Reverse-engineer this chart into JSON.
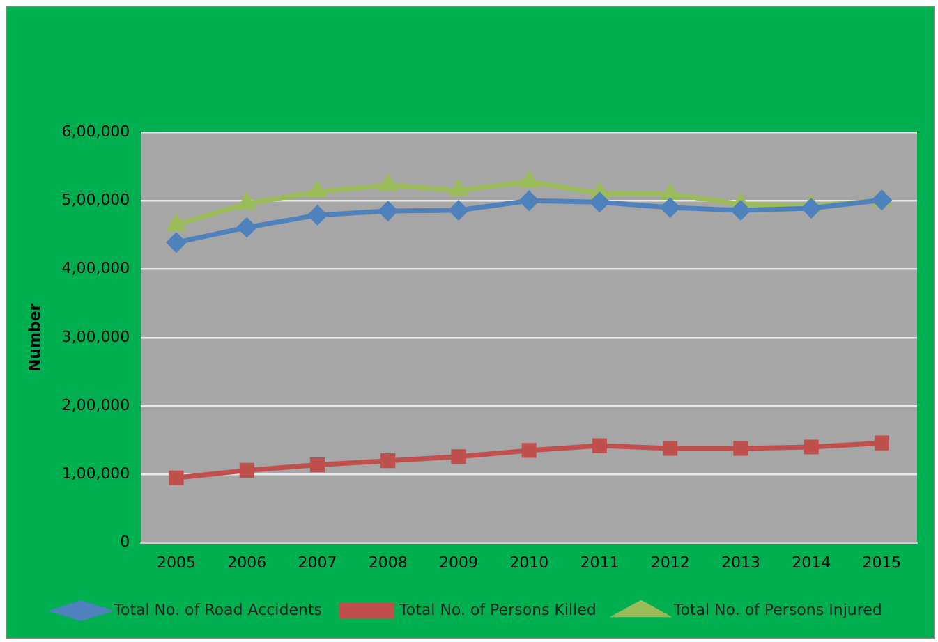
{
  "chart_data": {
    "type": "line",
    "ylabel": "Number",
    "categories": [
      "2005",
      "2006",
      "2007",
      "2008",
      "2009",
      "2010",
      "2011",
      "2012",
      "2013",
      "2014",
      "2015"
    ],
    "series": [
      {
        "name": "Total No. of Road Accidents",
        "color": "#4f81bd",
        "marker": "diamond",
        "values": [
          439000,
          461000,
          479000,
          485000,
          486000,
          500000,
          498000,
          490000,
          486000,
          489000,
          501000
        ]
      },
      {
        "name": "Total No. of Persons Killed",
        "color": "#c0504d",
        "marker": "square",
        "values": [
          95000,
          106000,
          114000,
          120000,
          126000,
          135000,
          142000,
          138000,
          138000,
          140000,
          146000
        ]
      },
      {
        "name": "Total No. of Persons Injured",
        "color": "#9bbb59",
        "marker": "triangle",
        "values": [
          465000,
          496000,
          513000,
          523000,
          515000,
          528000,
          511000,
          510000,
          495000,
          493000,
          500000
        ]
      }
    ],
    "ylim": [
      0,
      600000
    ],
    "yticks": [
      0,
      {
        "value": 100000,
        "label": "1,00,000"
      },
      {
        "value": 200000,
        "label": "2,00,000"
      },
      {
        "value": 300000,
        "label": "3,00,000"
      },
      {
        "value": 400000,
        "label": "4,00,000"
      },
      {
        "value": 500000,
        "label": "5,00,000"
      },
      {
        "value": 600000,
        "label": "6,00,000"
      }
    ],
    "grid": "y",
    "legend": "bottom",
    "line_style": "solid"
  }
}
